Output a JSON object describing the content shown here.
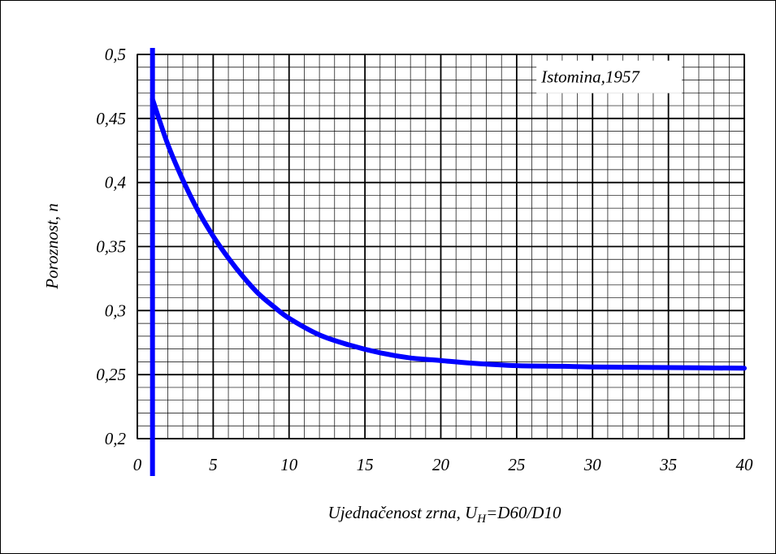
{
  "chart_data": {
    "type": "line",
    "xlabel_main": "Ujednačenost zrna, U",
    "xlabel_sub": "H",
    "xlabel_tail": "=D60/D10",
    "ylabel": "Poroznost, n",
    "annotation": "Istomina,1957",
    "xlim": [
      0,
      40
    ],
    "ylim": [
      0.2,
      0.5
    ],
    "x_ticks": [
      0,
      5,
      10,
      15,
      20,
      25,
      30,
      35,
      40
    ],
    "x_tick_labels": [
      "0",
      "5",
      "10",
      "15",
      "20",
      "25",
      "30",
      "35",
      "40"
    ],
    "y_ticks": [
      0.2,
      0.25,
      0.3,
      0.35,
      0.4,
      0.45,
      0.5
    ],
    "y_tick_labels": [
      "0,2",
      "0,25",
      "0,3",
      "0,35",
      "0,4",
      "0,45",
      "0,5"
    ],
    "grid": true,
    "minor_grid": true,
    "vertical_reference_x": 1,
    "series": [
      {
        "color": "#0000ff",
        "x": [
          1,
          2,
          3,
          4,
          5,
          6,
          7,
          8,
          9,
          10,
          12,
          14,
          16,
          18,
          20,
          22,
          25,
          28,
          30,
          35,
          40
        ],
        "y": [
          0.465,
          0.43,
          0.402,
          0.378,
          0.358,
          0.341,
          0.326,
          0.313,
          0.303,
          0.294,
          0.281,
          0.273,
          0.267,
          0.263,
          0.261,
          0.259,
          0.257,
          0.2565,
          0.256,
          0.2555,
          0.255
        ]
      }
    ]
  }
}
